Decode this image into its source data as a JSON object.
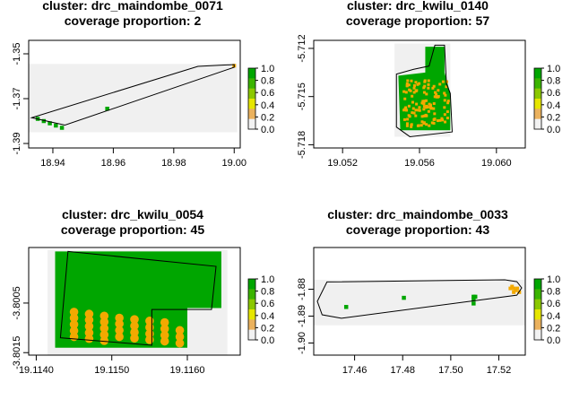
{
  "legend": {
    "ticks": [
      "1.0",
      "0.8",
      "0.6",
      "0.4",
      "0.2",
      "0.0"
    ],
    "tick_values": [
      1.0,
      0.8,
      0.6,
      0.4,
      0.2,
      0.0
    ],
    "colors_top_to_bottom": [
      "#00a600",
      "#3bb400",
      "#8bc800",
      "#e6e600",
      "#ebb25e",
      "#f2f2f2"
    ]
  },
  "colors": {
    "full_coverage": "#00a600",
    "partial_coverage": "#f2a900",
    "area_background": "#f0f0f0",
    "boundary": "#000000"
  },
  "chart_data": [
    {
      "type": "raster-map",
      "title_line1": "cluster: drc_maindombe_0071",
      "title_line2": "coverage proportion: 2",
      "xlim": [
        18.932,
        19.002
      ],
      "ylim": [
        -1.392,
        -1.344
      ],
      "xticks": [
        18.94,
        18.96,
        18.98,
        19.0
      ],
      "xtick_labels": [
        "18.94",
        "18.96",
        "18.98",
        "19.00"
      ],
      "yticks": [
        -1.35,
        -1.37,
        -1.39
      ],
      "ytick_labels": [
        "-1.35",
        "-1.37",
        "-1.39"
      ],
      "extent": [
        18.932,
        19.001,
        -1.385,
        -1.3545
      ],
      "boundary": [
        [
          18.933,
          -1.3785
        ],
        [
          18.988,
          -1.3556
        ],
        [
          19.0,
          -1.3548
        ],
        [
          19.0,
          -1.356
        ],
        [
          18.944,
          -1.3818
        ],
        [
          18.933,
          -1.3785
        ]
      ],
      "cells_full": [
        [
          18.935,
          -1.379
        ],
        [
          18.937,
          -1.38
        ],
        [
          18.939,
          -1.381
        ],
        [
          18.941,
          -1.382
        ],
        [
          18.943,
          -1.383
        ],
        [
          18.958,
          -1.3745
        ]
      ],
      "cells_partial": [
        [
          19.0,
          -1.3553
        ]
      ]
    },
    {
      "type": "raster-map",
      "title_line1": "cluster: drc_kwilu_0140",
      "title_line2": "coverage proportion: 57",
      "xlim": [
        19.0505,
        19.0615
      ],
      "ylim": [
        -5.7182,
        -5.7115
      ],
      "xticks": [
        19.052,
        19.056,
        19.06
      ],
      "xtick_labels": [
        "19.052",
        "19.056",
        "19.060"
      ],
      "yticks": [
        -5.712,
        -5.715,
        -5.718
      ],
      "ytick_labels": [
        "-5.712",
        "-5.715",
        "-5.718"
      ],
      "extent": [
        19.0547,
        19.0576,
        -5.7175,
        -5.7117
      ],
      "boundary": [
        [
          19.0557,
          -5.7133
        ],
        [
          19.0565,
          -5.7131
        ],
        [
          19.0568,
          -5.7118
        ],
        [
          19.0573,
          -5.7118
        ],
        [
          19.0574,
          -5.7142
        ],
        [
          19.0576,
          -5.7148
        ],
        [
          19.0577,
          -5.7172
        ],
        [
          19.0555,
          -5.7175
        ],
        [
          19.0548,
          -5.7169
        ],
        [
          19.0548,
          -5.7136
        ],
        [
          19.0557,
          -5.7133
        ]
      ],
      "green_block": [
        [
          19.0563,
          -5.7119
        ],
        [
          19.0573,
          -5.7119
        ],
        [
          19.0573,
          -5.7135
        ],
        [
          19.0576,
          -5.7148
        ],
        [
          19.0576,
          -5.7171
        ],
        [
          19.055,
          -5.7171
        ],
        [
          19.0549,
          -5.7137
        ],
        [
          19.0563,
          -5.7135
        ]
      ],
      "partial_region": [
        19.0551,
        19.0575,
        -5.7168,
        -5.7139
      ],
      "partial_count": 120
    },
    {
      "type": "raster-map",
      "title_line1": "cluster: drc_kwilu_0054",
      "title_line2": "coverage proportion: 45",
      "xlim": [
        19.1139,
        19.1167
      ],
      "ylim": [
        -3.80155,
        -3.79938
      ],
      "xticks": [
        19.114,
        19.115,
        19.116
      ],
      "xtick_labels": [
        "19.1140",
        "19.1150",
        "19.1160"
      ],
      "yticks": [
        -3.8005,
        -3.8015
      ],
      "ytick_labels": [
        "-3.8005",
        "-3.8015"
      ],
      "extent": [
        19.11415,
        19.11653,
        -3.80155,
        -3.79943
      ],
      "boundary": [
        [
          19.11442,
          -3.79946
        ],
        [
          19.11638,
          -3.79976
        ],
        [
          19.11632,
          -3.80063
        ],
        [
          19.11553,
          -3.80063
        ],
        [
          19.11553,
          -3.80135
        ],
        [
          19.11432,
          -3.8012
        ],
        [
          19.11442,
          -3.79946
        ]
      ],
      "partial_cells": [
        [
          19.1145,
          -3.80068
        ],
        [
          19.1145,
          -3.8008
        ],
        [
          19.1145,
          -3.80093
        ],
        [
          19.1145,
          -3.80106
        ],
        [
          19.1145,
          -3.80118
        ],
        [
          19.1147,
          -3.80072
        ],
        [
          19.1147,
          -3.80084
        ],
        [
          19.1147,
          -3.80097
        ],
        [
          19.1147,
          -3.8011
        ],
        [
          19.1147,
          -3.80122
        ],
        [
          19.1149,
          -3.80076
        ],
        [
          19.1149,
          -3.80088
        ],
        [
          19.1149,
          -3.80101
        ],
        [
          19.1149,
          -3.80114
        ],
        [
          19.1149,
          -3.80126
        ],
        [
          19.1151,
          -3.8008
        ],
        [
          19.1151,
          -3.80092
        ],
        [
          19.1151,
          -3.80105
        ],
        [
          19.1151,
          -3.80118
        ],
        [
          19.1153,
          -3.80083
        ],
        [
          19.1153,
          -3.80096
        ],
        [
          19.1153,
          -3.80109
        ],
        [
          19.1153,
          -3.80121
        ],
        [
          19.1155,
          -3.80086
        ],
        [
          19.1155,
          -3.80099
        ],
        [
          19.1155,
          -3.80112
        ],
        [
          19.1155,
          -3.80124
        ],
        [
          19.1157,
          -3.80089
        ],
        [
          19.1157,
          -3.80102
        ],
        [
          19.1157,
          -3.80115
        ],
        [
          19.1157,
          -3.80127
        ],
        [
          19.1159,
          -3.80105
        ],
        [
          19.1159,
          -3.80118
        ],
        [
          19.1159,
          -3.80131
        ]
      ]
    },
    {
      "type": "raster-map",
      "title_line1": "cluster: drc_maindombe_0033",
      "title_line2": "coverage proportion: 43",
      "xlim": [
        17.443,
        17.531
      ],
      "ylim": [
        -1.9045,
        -1.8645
      ],
      "xticks": [
        17.46,
        17.48,
        17.5,
        17.52
      ],
      "xtick_labels": [
        "17.46",
        "17.48",
        "17.50",
        "17.52"
      ],
      "yticks": [
        -1.88,
        -1.89,
        -1.9
      ],
      "ytick_labels": [
        "-1.88",
        "-1.89",
        "-1.90"
      ],
      "extent": [
        17.443,
        17.531,
        -1.8934,
        -1.8765
      ],
      "boundary": [
        [
          17.4445,
          -1.8845
        ],
        [
          17.4485,
          -1.8773
        ],
        [
          17.5225,
          -1.8765
        ],
        [
          17.5275,
          -1.8772
        ],
        [
          17.5295,
          -1.8795
        ],
        [
          17.5275,
          -1.8822
        ],
        [
          17.4545,
          -1.8908
        ],
        [
          17.4465,
          -1.8895
        ],
        [
          17.4445,
          -1.8845
        ]
      ],
      "cells_full": [
        [
          17.4565,
          -1.8866
        ],
        [
          17.4805,
          -1.8832
        ],
        [
          17.5095,
          -1.8828
        ],
        [
          17.5102,
          -1.8828
        ],
        [
          17.5095,
          -1.8837
        ],
        [
          17.5095,
          -1.8853
        ]
      ],
      "cells_partial": [
        [
          17.5255,
          -1.879
        ],
        [
          17.5262,
          -1.8797
        ],
        [
          17.527,
          -1.8804
        ],
        [
          17.5277,
          -1.8797
        ],
        [
          17.5285,
          -1.8811
        ],
        [
          17.5262,
          -1.8811
        ],
        [
          17.5248,
          -1.8797
        ]
      ]
    }
  ]
}
